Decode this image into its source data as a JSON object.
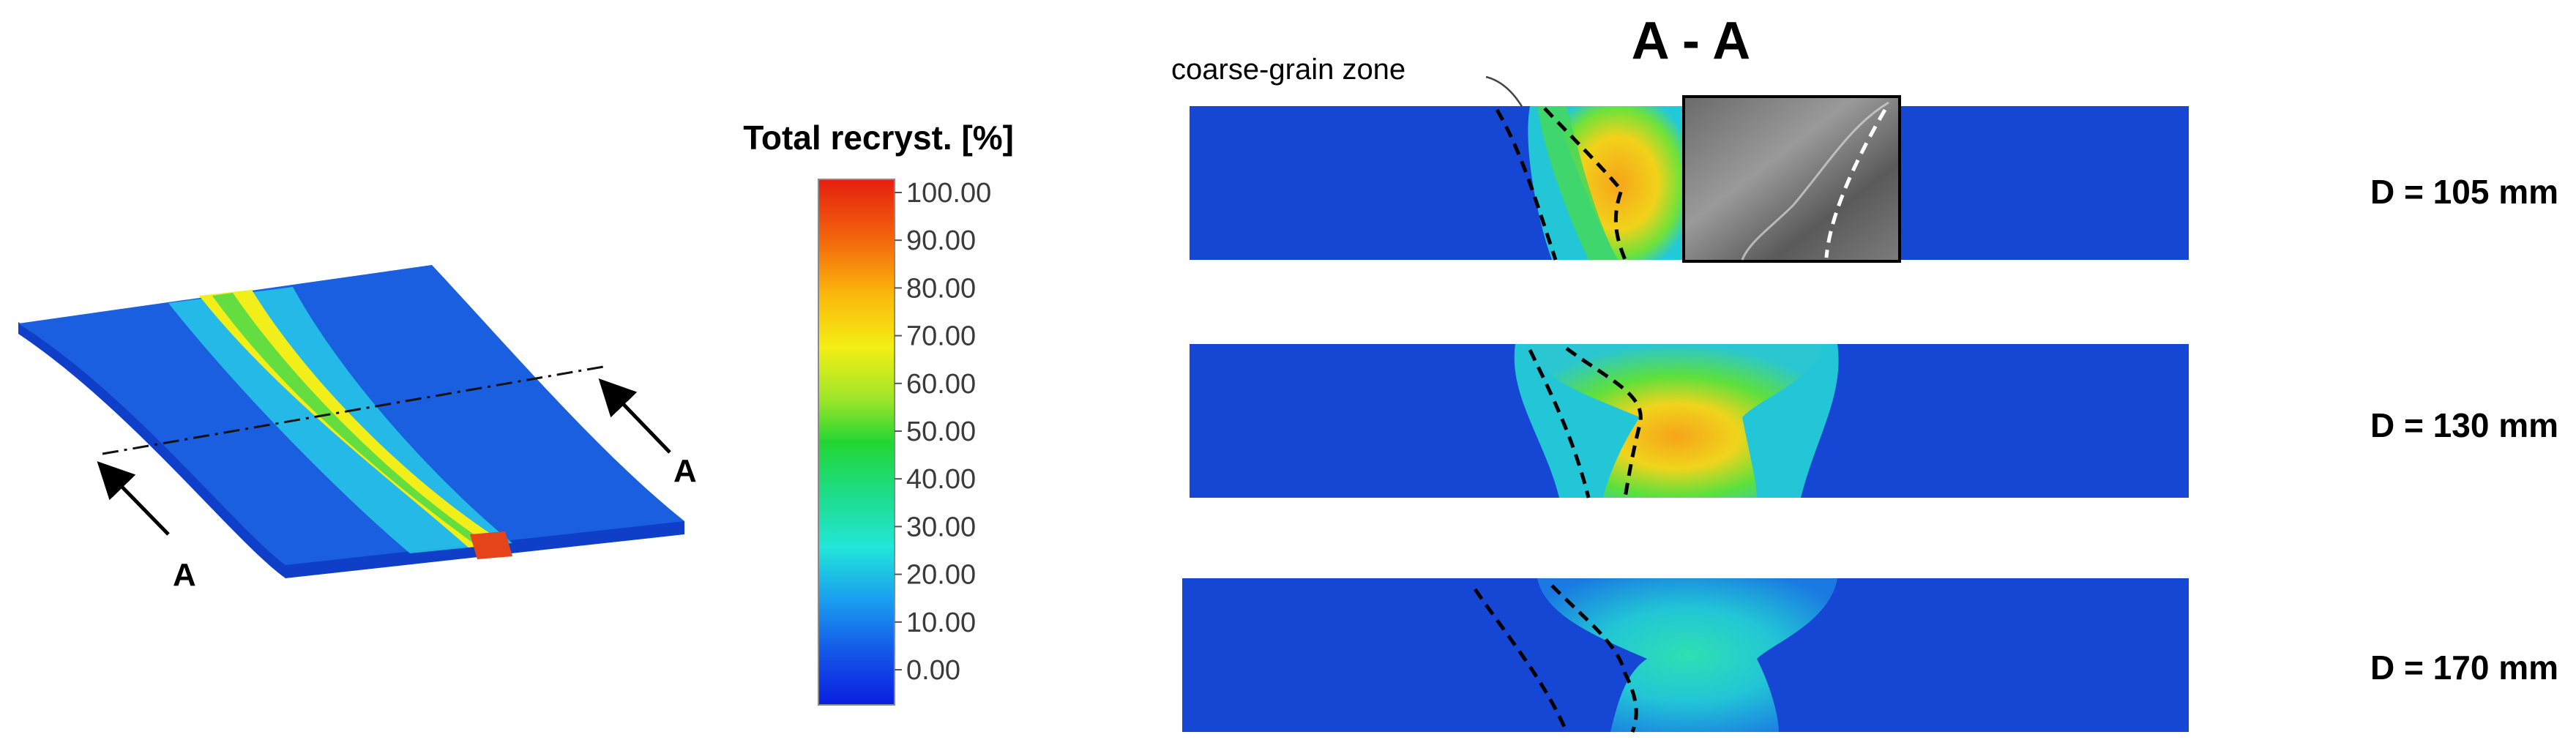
{
  "legend": {
    "title": "Total recryst. [%]",
    "ticks": [
      "100.00",
      "90.00",
      "80.00",
      "70.00",
      "60.00",
      "50.00",
      "40.00",
      "30.00",
      "20.00",
      "10.00",
      "0.00"
    ]
  },
  "section_label": "A",
  "section_title": "A - A",
  "annotation": "coarse-grain zone",
  "cross_sections": [
    {
      "label": "D = 105 mm"
    },
    {
      "label": "D = 130 mm"
    },
    {
      "label": "D = 170 mm"
    }
  ]
}
